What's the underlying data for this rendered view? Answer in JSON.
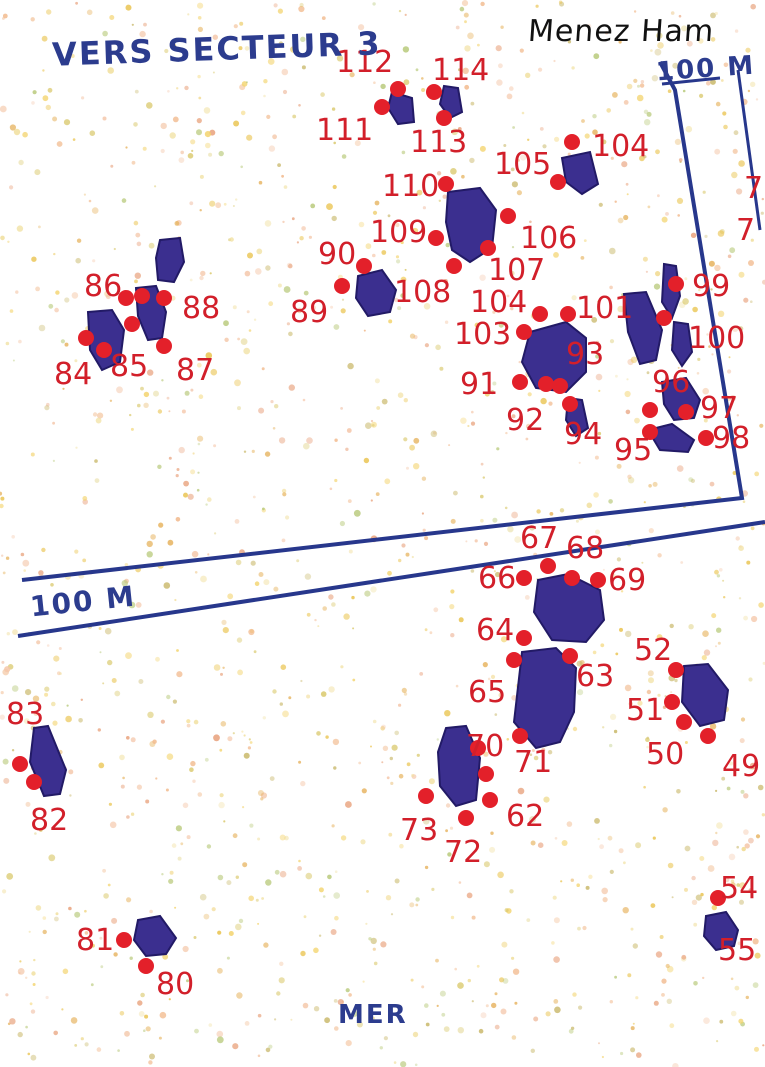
{
  "map": {
    "site_name": "Menez Ham",
    "direction_label": "VERS SECTEUR 3",
    "scale_label_upper": "100 M",
    "scale_label_lower": "100 M",
    "sea_label": "MER",
    "colors": {
      "stone": "#3b2f8f",
      "stone_dark": "#221a66",
      "marker": "#e3202a",
      "marker_label": "#d21f2a",
      "grid_line": "#27378c",
      "caption": "#2c3c8e"
    },
    "stone_numbers": [
      "112",
      "114",
      "111",
      "113",
      "105",
      "104",
      "110",
      "109",
      "106",
      "90",
      "107",
      "89",
      "108",
      "7",
      "7",
      "86",
      "88",
      "84",
      "85",
      "87",
      "104",
      "101",
      "99",
      "103",
      "100",
      "93",
      "91",
      "92",
      "94",
      "96",
      "97",
      "95",
      "98",
      "67",
      "68",
      "66",
      "69",
      "64",
      "63",
      "65",
      "52",
      "51",
      "50",
      "49",
      "70",
      "62",
      "71",
      "73",
      "72",
      "83",
      "82",
      "81",
      "80",
      "54",
      "55"
    ]
  }
}
